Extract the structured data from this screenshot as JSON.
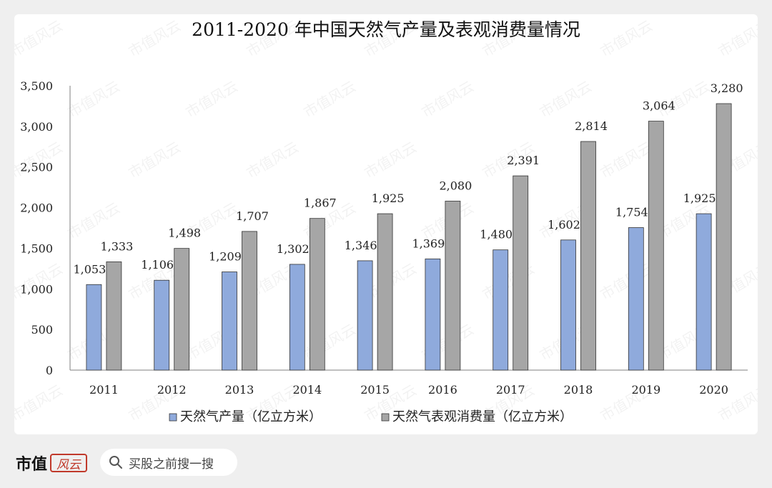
{
  "chart_data": {
    "type": "bar",
    "title": "2011-2020 年中国天然气产量及表观消费量情况",
    "categories": [
      "2011",
      "2012",
      "2013",
      "2014",
      "2015",
      "2016",
      "2017",
      "2018",
      "2019",
      "2020"
    ],
    "series": [
      {
        "name": "天然气产量（亿立方米）",
        "color": "#8faadc",
        "values": [
          1053,
          1106,
          1209,
          1302,
          1346,
          1369,
          1480,
          1602,
          1754,
          1925
        ]
      },
      {
        "name": "天然气表观消费量（亿立方米）",
        "color": "#a6a6a6",
        "values": [
          1333,
          1498,
          1707,
          1867,
          1925,
          2080,
          2391,
          2814,
          3064,
          3280
        ]
      }
    ],
    "ylim": [
      0,
      3500
    ],
    "yticks": [
      0,
      500,
      1000,
      1500,
      2000,
      2500,
      3000,
      3500
    ],
    "ytick_labels": [
      "0",
      "500",
      "1,000",
      "1,500",
      "2,000",
      "2,500",
      "3,000",
      "3,500"
    ],
    "xlabel": "",
    "ylabel": "",
    "grid": false,
    "legend": "bottom"
  },
  "footer": {
    "brand": "市值",
    "brand_logo": "风云",
    "search_text": "买股之前搜一搜"
  },
  "watermark": "市值风云"
}
